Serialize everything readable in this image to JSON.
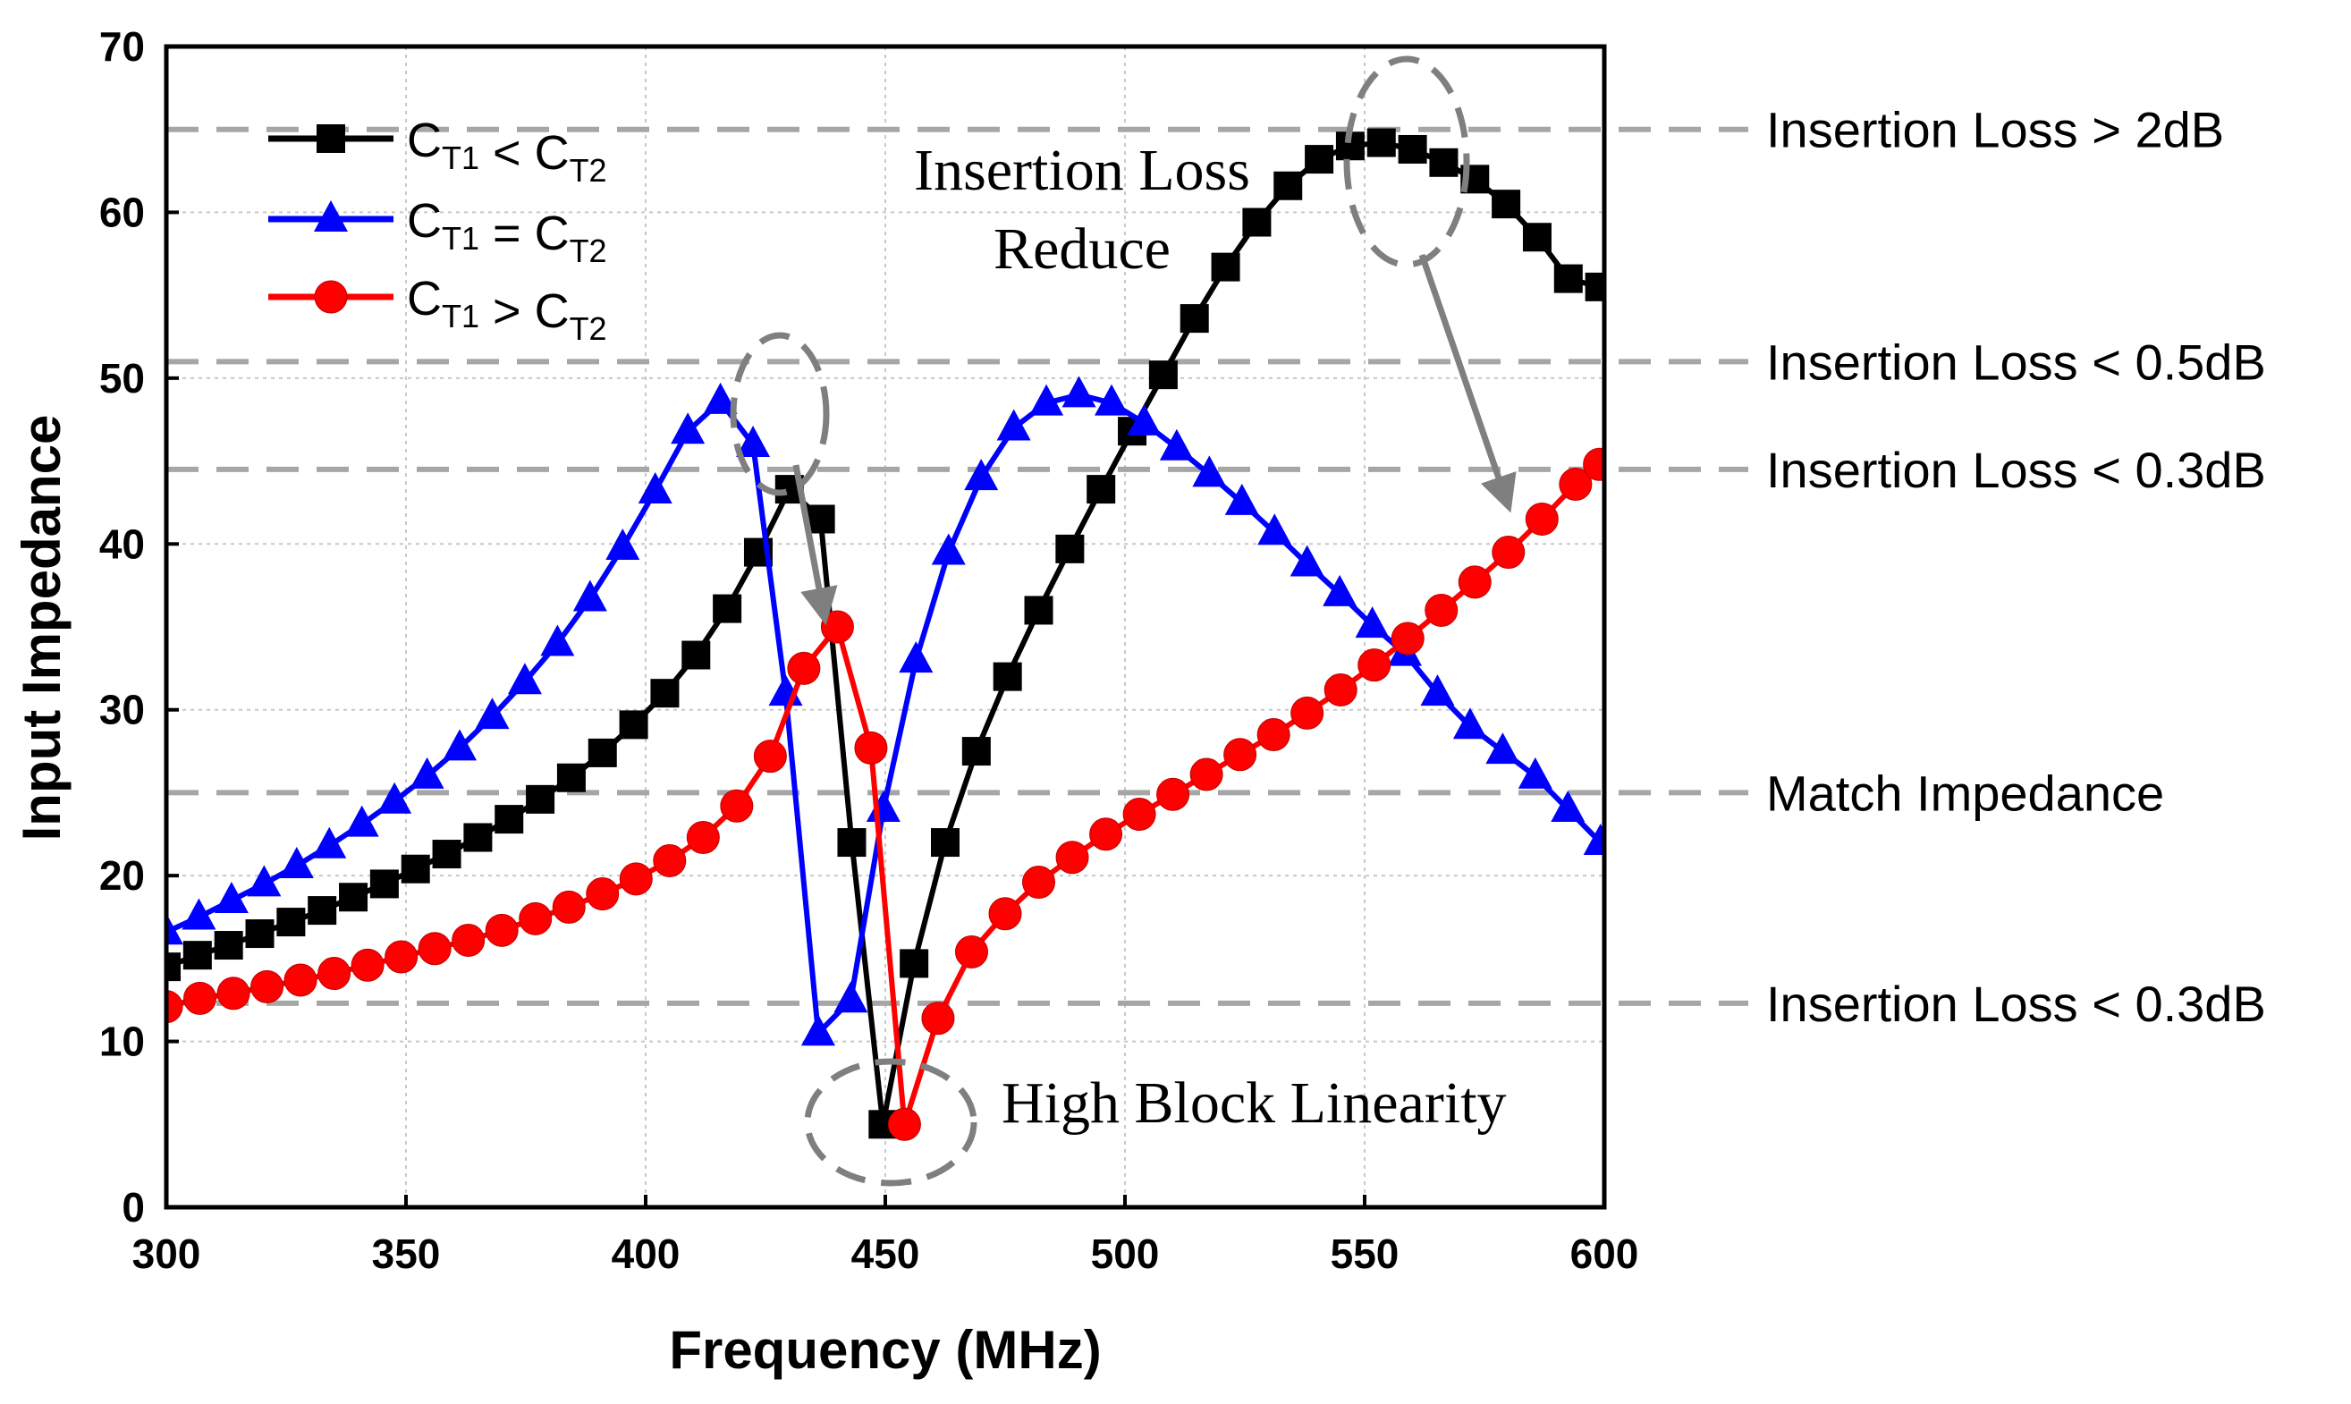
{
  "chart_data": {
    "type": "line",
    "xlabel": "Frequency (MHz)",
    "ylabel": "Input Impedance",
    "xlim": [
      300,
      600
    ],
    "ylim": [
      0,
      70
    ],
    "xticks": [
      300,
      350,
      400,
      450,
      500,
      550,
      600
    ],
    "yticks": [
      0,
      10,
      20,
      30,
      40,
      50,
      60,
      70
    ],
    "grid": true,
    "legend_position": "top-left",
    "series": [
      {
        "name": "CT1 < CT2",
        "legend": {
          "a": "C",
          "a_sub": "T1",
          "op": "<",
          "b": "C",
          "b_sub": "T2"
        },
        "color": "#000000",
        "marker": "square",
        "x": [
          300,
          306.5,
          313,
          319.5,
          326,
          332.5,
          339,
          345.5,
          352,
          358.5,
          365,
          371.5,
          378,
          384.5,
          391,
          397.5,
          404,
          410.5,
          417,
          423.5,
          430,
          436.5,
          443,
          449.5,
          456,
          462.5,
          469,
          475.5,
          482,
          488.5,
          495,
          501.5,
          508,
          514.5,
          521,
          527.5,
          534,
          540.5,
          547,
          553.5,
          560,
          566.5,
          573,
          579.5,
          586,
          592.5,
          599
        ],
        "y": [
          14.5,
          15.2,
          15.8,
          16.5,
          17.2,
          17.9,
          18.7,
          19.5,
          20.4,
          21.3,
          22.3,
          23.4,
          24.6,
          25.9,
          27.4,
          29.1,
          31.0,
          33.3,
          36.1,
          39.5,
          43.3,
          41.5,
          22,
          5,
          14.7,
          22,
          27.5,
          32,
          36,
          39.7,
          43.3,
          46.8,
          50.2,
          53.6,
          56.7,
          59.4,
          61.6,
          63.2,
          64.0,
          64.2,
          63.8,
          63.0,
          62.0,
          60.5,
          58.5,
          56.0,
          55.5
        ]
      },
      {
        "name": "CT1 = CT2",
        "legend": {
          "a": "C",
          "a_sub": "T1",
          "op": "=",
          "b": "C",
          "b_sub": "T2"
        },
        "color": "#0000ff",
        "marker": "triangle",
        "x": [
          300,
          306.8,
          313.6,
          320.4,
          327.2,
          334,
          340.8,
          347.6,
          354.4,
          361.2,
          368,
          374.8,
          381.6,
          388.4,
          395.2,
          402,
          408.8,
          415.6,
          422.4,
          429.2,
          436,
          442.8,
          449.6,
          456.4,
          463.2,
          470,
          476.8,
          483.6,
          490.4,
          497.2,
          504,
          510.8,
          517.6,
          524.4,
          531.2,
          538,
          544.8,
          551.6,
          558.4,
          565.2,
          572,
          578.8,
          585.6,
          592.4,
          599.2
        ],
        "y": [
          16.6,
          17.5,
          18.5,
          19.5,
          20.6,
          21.8,
          23.1,
          24.5,
          26.0,
          27.7,
          29.6,
          31.7,
          34.0,
          36.7,
          39.8,
          43.2,
          46.8,
          48.6,
          46.0,
          31.0,
          10.5,
          12.5,
          24.0,
          33.0,
          39.5,
          44.0,
          47.0,
          48.5,
          49.0,
          48.5,
          47.3,
          45.8,
          44.2,
          42.5,
          40.7,
          38.8,
          37.0,
          35.1,
          33.4,
          31.0,
          29.0,
          27.5,
          26.0,
          24.0,
          22.0
        ]
      },
      {
        "name": "CT1 > CT2",
        "legend": {
          "a": "C",
          "a_sub": "T1",
          "op": ">",
          "b": "C",
          "b_sub": "T2"
        },
        "color": "#ff0000",
        "marker": "circle",
        "x": [
          300,
          307,
          314,
          321,
          328,
          335,
          342,
          349,
          356,
          363,
          370,
          377,
          384,
          391,
          398,
          405,
          412,
          419,
          426,
          433,
          440,
          447,
          454,
          461,
          468,
          475,
          482,
          489,
          496,
          503,
          510,
          517,
          524,
          531,
          538,
          545,
          552,
          559,
          566,
          573,
          580,
          587,
          594,
          599
        ],
        "y": [
          12.1,
          12.6,
          12.9,
          13.3,
          13.7,
          14.1,
          14.6,
          15.1,
          15.6,
          16.1,
          16.7,
          17.4,
          18.1,
          18.9,
          19.8,
          20.9,
          22.3,
          24.2,
          27.2,
          32.5,
          35,
          27.7,
          5,
          11.4,
          15.4,
          17.7,
          19.6,
          21.1,
          22.5,
          23.7,
          24.9,
          26.1,
          27.3,
          28.5,
          29.8,
          31.2,
          32.7,
          34.3,
          36.0,
          37.7,
          39.5,
          41.5,
          43.6,
          44.8
        ]
      }
    ],
    "reference_lines": [
      {
        "y": 65,
        "label": "Insertion Loss > 2dB"
      },
      {
        "y": 51,
        "label": "Insertion Loss < 0.5dB"
      },
      {
        "y": 44.5,
        "label": "Insertion Loss < 0.3dB"
      },
      {
        "y": 25,
        "label": "Match Impedance"
      },
      {
        "y": 12.3,
        "label": "Insertion Loss < 0.3dB"
      }
    ],
    "annotations": {
      "top_line1": "Insertion Loss",
      "top_line2": "Reduce",
      "bottom": "High Block Linearity"
    }
  }
}
